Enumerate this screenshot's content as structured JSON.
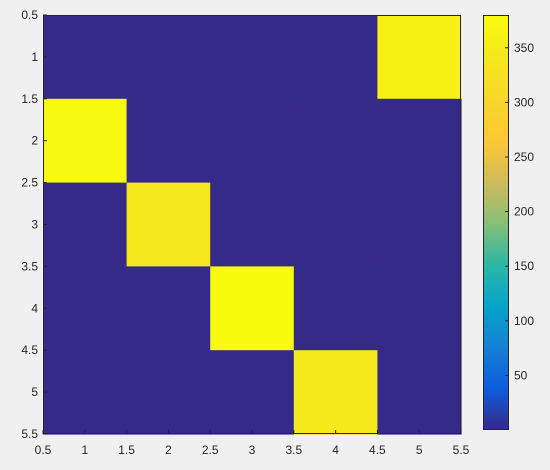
{
  "chart_data": {
    "type": "heatmap",
    "title": "",
    "xlabel": "",
    "ylabel": "",
    "rows": [
      1,
      2,
      3,
      4,
      5
    ],
    "columns": [
      1,
      2,
      3,
      4,
      5
    ],
    "values": [
      [
        0,
        0,
        0,
        0,
        360
      ],
      [
        375,
        0,
        0,
        0,
        0
      ],
      [
        0,
        340,
        0,
        0,
        0
      ],
      [
        0,
        0,
        380,
        0,
        0
      ],
      [
        0,
        0,
        0,
        345,
        0
      ]
    ],
    "xlim": [
      0.5,
      5.5
    ],
    "ylim": [
      0.5,
      5.5
    ],
    "y_reversed": true,
    "x_ticks": [
      "0.5",
      "1",
      "1.5",
      "2",
      "2.5",
      "3",
      "3.5",
      "4",
      "4.5",
      "5",
      "5.5"
    ],
    "y_ticks": [
      "0.5",
      "1",
      "1.5",
      "2",
      "2.5",
      "3",
      "3.5",
      "4",
      "4.5",
      "5",
      "5.5"
    ],
    "colormap": "parula",
    "colorbar": {
      "min": 0,
      "max": 380,
      "ticks": [
        "50",
        "100",
        "150",
        "200",
        "250",
        "300",
        "350"
      ],
      "tick_values": [
        50,
        100,
        150,
        200,
        250,
        300,
        350
      ]
    },
    "colors": {
      "background": "#f0f0f0",
      "axes_line": "#262626",
      "text": "#262626"
    },
    "grid": false
  }
}
